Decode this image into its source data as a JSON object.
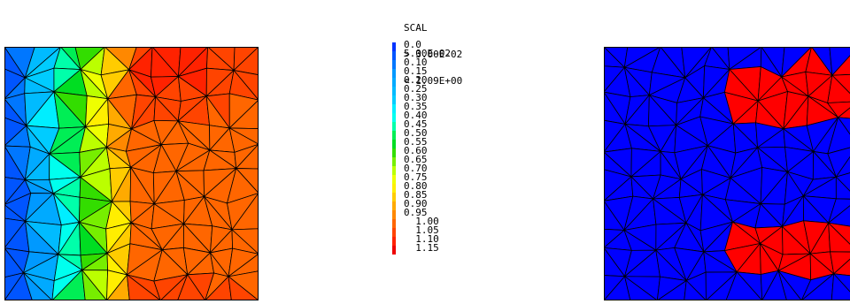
{
  "legend": {
    "title": "SCAL",
    "max_line": "> 3.00E-02",
    "min_line": "< 1.09E+00",
    "levels": [
      {
        "label": "0.0",
        "color": "#0033ff"
      },
      {
        "label": "5.00E-02",
        "color": "#0055ff"
      },
      {
        "label": "0.10",
        "color": "#0077ff"
      },
      {
        "label": "0.15",
        "color": "#0099ff"
      },
      {
        "label": "0.20",
        "color": "#00aaff"
      },
      {
        "label": "0.25",
        "color": "#00bbff"
      },
      {
        "label": "0.30",
        "color": "#00ccff"
      },
      {
        "label": "0.35",
        "color": "#00eeff"
      },
      {
        "label": "0.40",
        "color": "#00ffee"
      },
      {
        "label": "0.45",
        "color": "#00ffaa"
      },
      {
        "label": "0.50",
        "color": "#00ee55"
      },
      {
        "label": "0.55",
        "color": "#00dd22"
      },
      {
        "label": "0.60",
        "color": "#33dd00"
      },
      {
        "label": "0.65",
        "color": "#77ee00"
      },
      {
        "label": "0.70",
        "color": "#bbff00"
      },
      {
        "label": "0.75",
        "color": "#eeff00"
      },
      {
        "label": "0.80",
        "color": "#ffee00"
      },
      {
        "label": "0.85",
        "color": "#ffcc00"
      },
      {
        "label": "0.90",
        "color": "#ffaa00"
      },
      {
        "label": "0.95",
        "color": "#ff8800"
      },
      {
        "label": "1.00",
        "color": "#ff6600"
      },
      {
        "label": "1.05",
        "color": "#ff4400"
      },
      {
        "label": "1.10",
        "color": "#ff2200"
      },
      {
        "label": "1.15",
        "color": "#ee0000"
      }
    ]
  },
  "left_plot": {
    "field": "SCAL",
    "colormap_range": [
      0.03,
      1.09
    ]
  },
  "right_plot": {
    "background_color": "#0000ff",
    "highlight_color": "#ff0000"
  }
}
